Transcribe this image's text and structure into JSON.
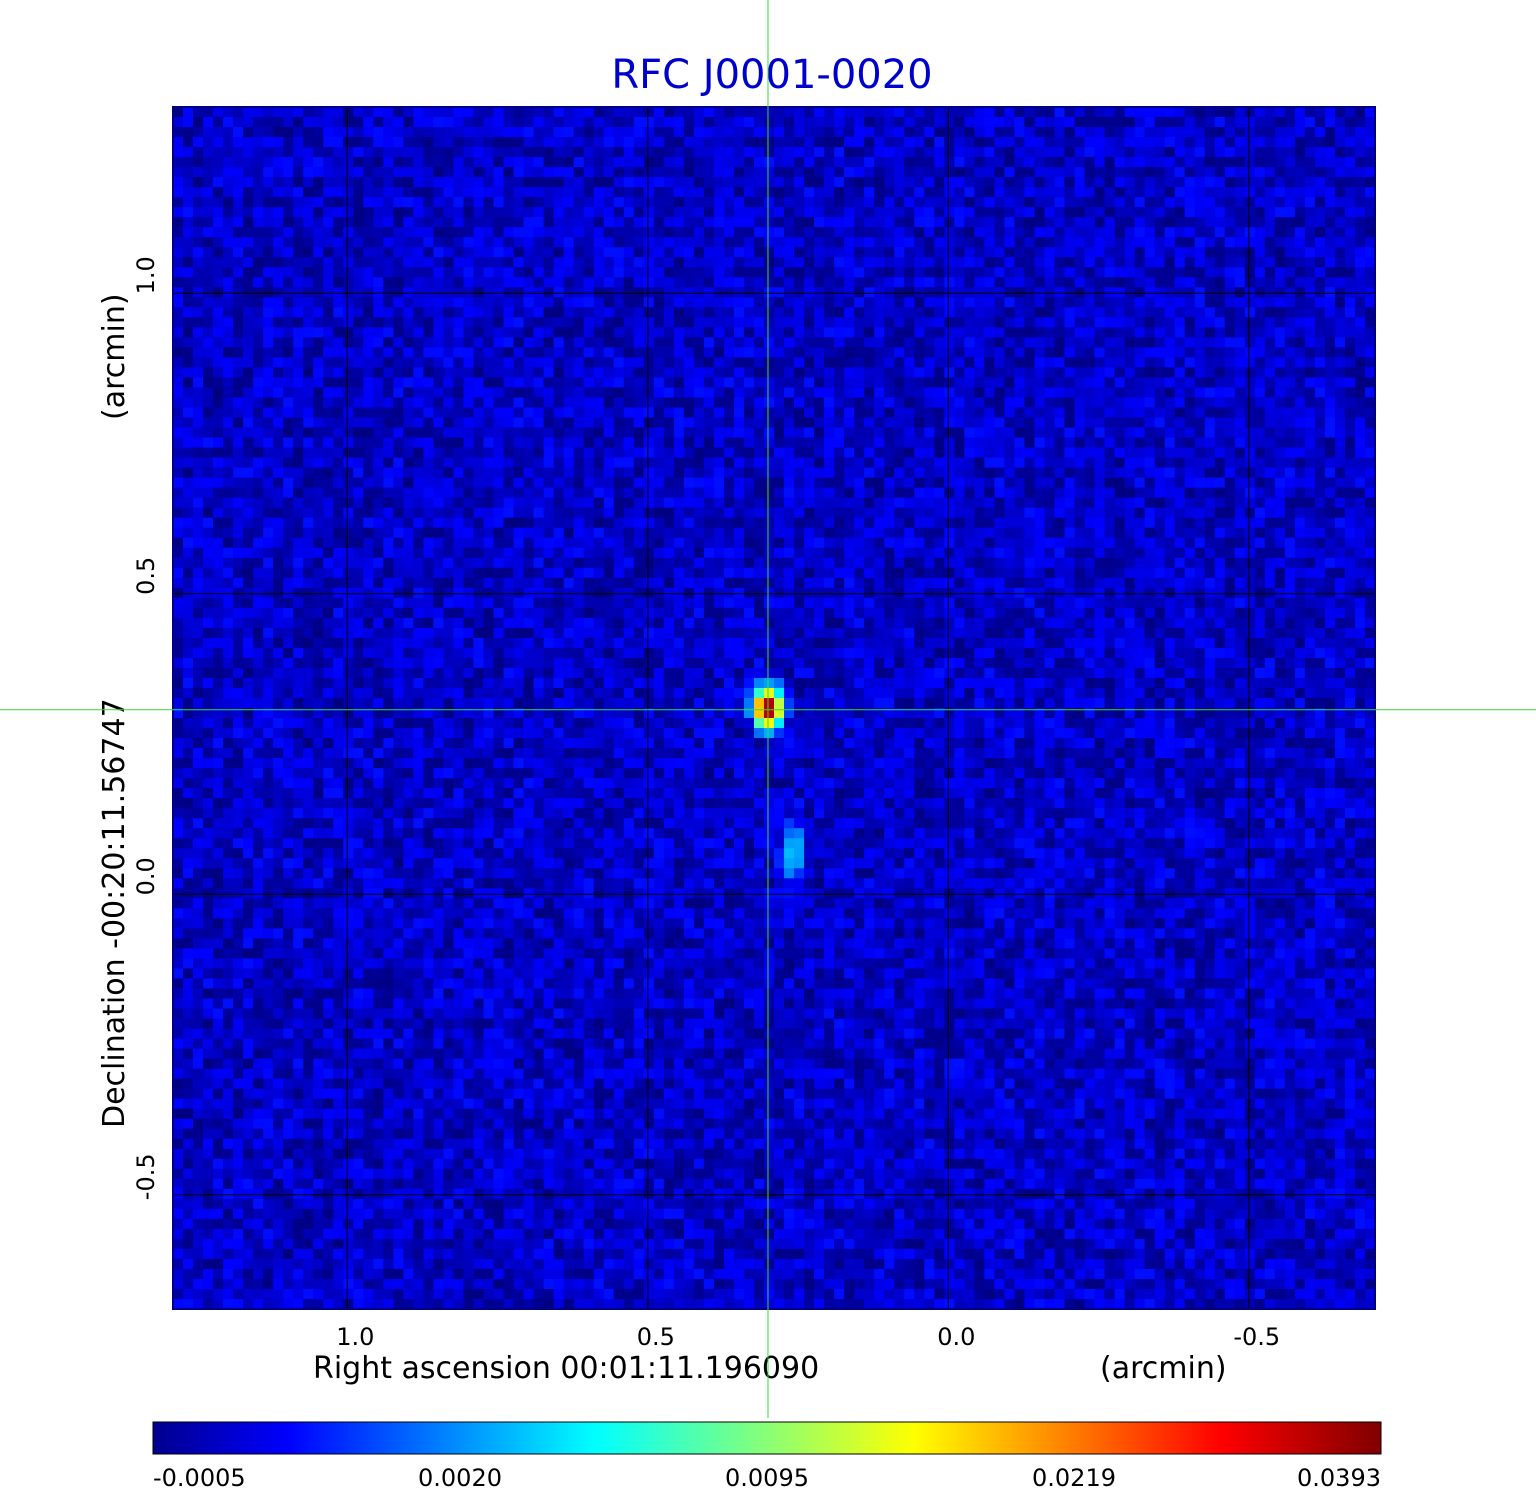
{
  "chart_data": {
    "type": "heatmap",
    "title": "RFC J0001-0020",
    "title_color": "#0000cc",
    "xlabel": "Right ascension  00:01:11.196090",
    "x_unit": "(arcmin)",
    "ylabel": "Declination  -00:20:11.56747",
    "y_unit": "(arcmin)",
    "xlim": [
      1.29,
      -0.71
    ],
    "ylim": [
      -0.69,
      1.31
    ],
    "x_ticks": [
      1.0,
      0.5,
      0.0,
      -0.5
    ],
    "x_tick_labels": [
      "1.0",
      "0.5",
      "0.0",
      "-0.5"
    ],
    "y_ticks": [
      1.0,
      0.5,
      0.0,
      -0.5
    ],
    "y_tick_labels": [
      "1.0",
      "0.5",
      "0.0",
      "-0.5"
    ],
    "grid": true,
    "colormap": "jet",
    "background_level": 0.0002,
    "sources": [
      {
        "x": 0.3,
        "y": 0.31,
        "peak": 0.0393,
        "sigma_x": 0.013,
        "sigma_y": 0.018
      },
      {
        "x": 0.26,
        "y": 0.07,
        "peak": 0.004,
        "sigma_x": 0.012,
        "sigma_y": 0.03
      }
    ],
    "crosshair": {
      "x": 0.3,
      "y": 0.307,
      "color": "#33dd33"
    },
    "colorbar": {
      "ticks": [
        -0.0005,
        0.002,
        0.0095,
        0.0219,
        0.0393
      ],
      "tick_labels": [
        "-0.0005",
        "0.0020",
        "0.0095",
        "0.0219",
        "0.0393"
      ]
    }
  }
}
